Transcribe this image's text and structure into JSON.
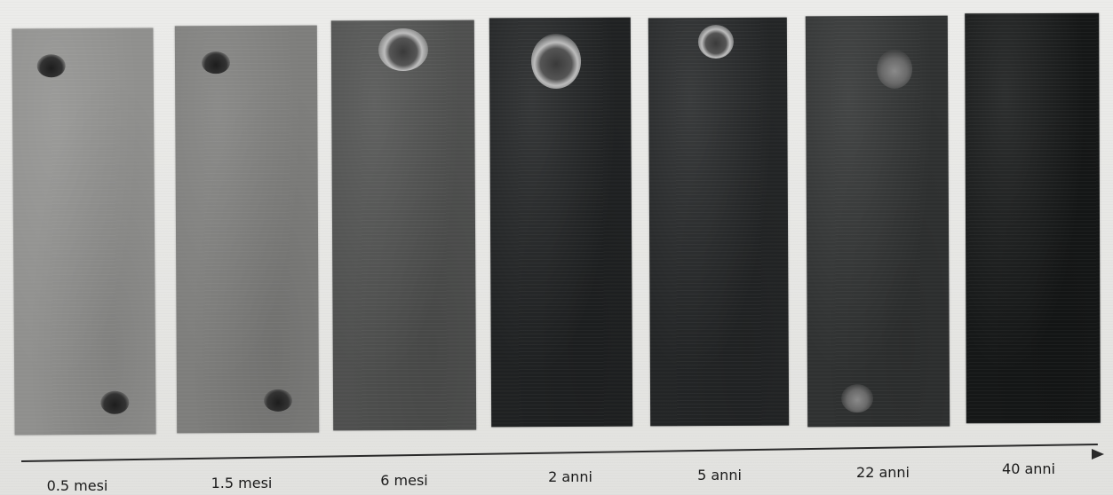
{
  "figure": {
    "samples": [
      {
        "label": "0.5 mesi",
        "tone": "#8f8f8d",
        "holes": [
          {
            "kind": "dark"
          },
          {
            "kind": "dark"
          }
        ]
      },
      {
        "label": "1.5 mesi",
        "tone": "#7d7d7b",
        "holes": [
          {
            "kind": "dark"
          },
          {
            "kind": "dark"
          }
        ]
      },
      {
        "label": "6 mesi",
        "tone": "#4e4f4e",
        "holes": [
          {
            "kind": "halo"
          }
        ]
      },
      {
        "label": "2 anni",
        "tone": "#1f2122",
        "holes": [
          {
            "kind": "halo"
          }
        ]
      },
      {
        "label": "5 anni",
        "tone": "#232526",
        "holes": [
          {
            "kind": "halo"
          }
        ]
      },
      {
        "label": "22 anni",
        "tone": "#2f3131",
        "holes": [
          {
            "kind": "faint"
          },
          {
            "kind": "faint"
          }
        ]
      },
      {
        "label": "40 anni",
        "tone": "#151717",
        "holes": []
      }
    ],
    "timeline_arrow": {
      "direction": "right",
      "color": "#2a2a2a"
    }
  }
}
